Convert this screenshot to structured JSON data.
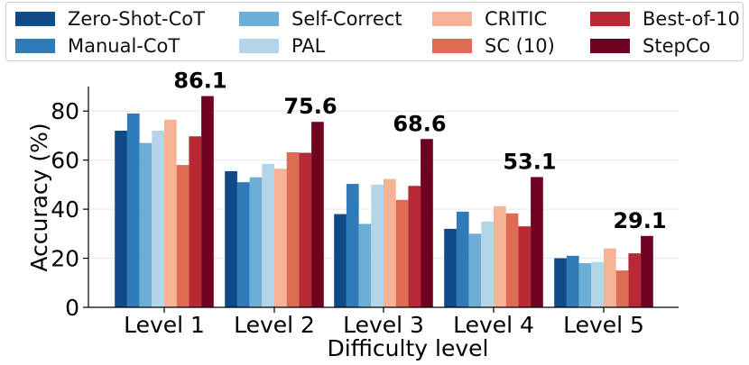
{
  "chart_data": {
    "type": "bar",
    "xlabel": "Difficulty level",
    "ylabel": "Accuracy (%)",
    "ylim": [
      0,
      90
    ],
    "yticks": [
      0,
      20,
      40,
      60,
      80
    ],
    "categories": [
      "Level 1",
      "Level 2",
      "Level 3",
      "Level 4",
      "Level 5"
    ],
    "series": [
      {
        "name": "Zero-Shot-CoT",
        "color": "#0d4a87",
        "values": [
          72.0,
          55.5,
          38.0,
          32.0,
          20.0
        ]
      },
      {
        "name": "Manual-CoT",
        "color": "#2f7ab9",
        "values": [
          79.0,
          51.0,
          50.3,
          39.0,
          21.0
        ]
      },
      {
        "name": "Self-Correct",
        "color": "#6caed6",
        "values": [
          67.0,
          53.0,
          34.0,
          30.0,
          18.0
        ]
      },
      {
        "name": "PAL",
        "color": "#b4d5e8",
        "values": [
          72.0,
          58.5,
          50.0,
          35.0,
          18.5
        ]
      },
      {
        "name": "CRITIC",
        "color": "#f5b294",
        "values": [
          76.5,
          56.5,
          52.3,
          41.2,
          24.0
        ]
      },
      {
        "name": "SC (10)",
        "color": "#de6b54",
        "values": [
          58.0,
          63.2,
          43.8,
          38.3,
          15.0
        ]
      },
      {
        "name": "Best-of-10",
        "color": "#b72a35",
        "values": [
          69.7,
          63.0,
          49.5,
          33.0,
          22.0
        ]
      },
      {
        "name": "StepCo",
        "color": "#6f0220",
        "values": [
          86.1,
          75.6,
          68.6,
          53.1,
          29.1
        ]
      }
    ],
    "data_labels": [
      "86.1",
      "75.6",
      "68.6",
      "53.1",
      "29.1"
    ],
    "legend_position": "top"
  }
}
